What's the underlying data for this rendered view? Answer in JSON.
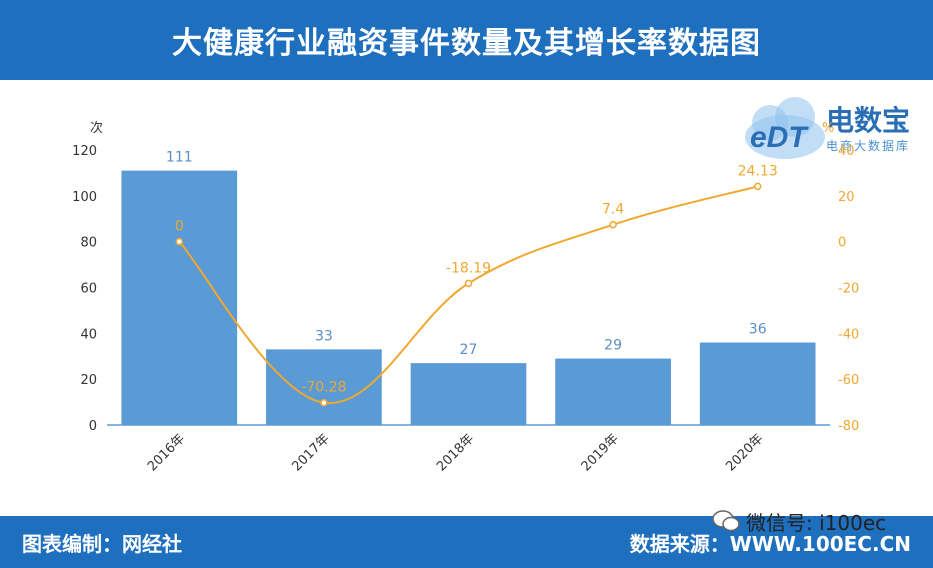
{
  "header": {
    "title": "大健康行业融资事件数量及其增长率数据图"
  },
  "footer": {
    "left_label": "图表编制：网经社",
    "right_label": "数据来源：WWW.100EC.CN"
  },
  "wechat": {
    "label": "微信号: i100ec"
  },
  "logo": {
    "main": "电数宝",
    "badge": "eDT",
    "sub": "电商大数据库"
  },
  "colors": {
    "header": "#1f6fbf",
    "bar": "#5b9bd5",
    "line": "#f0a830",
    "bar_label": "#5b8fc4"
  },
  "chart_data": {
    "type": "bar",
    "categories": [
      "2016年",
      "2017年",
      "2018年",
      "2019年",
      "2020年"
    ],
    "series": [
      {
        "type": "bar",
        "axis": "left",
        "values": [
          111,
          33,
          27,
          29,
          36
        ],
        "labels": [
          "111",
          "33",
          "27",
          "29",
          "36"
        ]
      },
      {
        "type": "line",
        "axis": "right",
        "values": [
          0,
          -70.28,
          -18.19,
          7.4,
          24.13
        ],
        "labels": [
          "0",
          "-70.28",
          "-18.19",
          "7.4",
          "24.13"
        ]
      }
    ],
    "y_left": {
      "label": "次",
      "min": 0,
      "max": 120,
      "ticks": [
        "0",
        "20",
        "40",
        "60",
        "80",
        "100",
        "120"
      ]
    },
    "y_right": {
      "label": "%",
      "min": -80,
      "max": 40,
      "ticks": [
        "-80",
        "-60",
        "-40",
        "-20",
        "0",
        "20",
        "40"
      ]
    },
    "grid": false
  }
}
